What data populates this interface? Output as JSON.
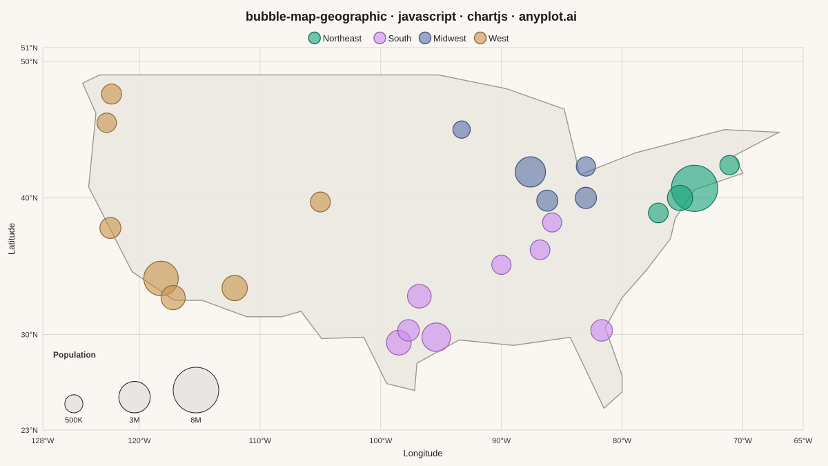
{
  "chart_data": {
    "type": "scatter",
    "subtype": "bubble-map",
    "title": "bubble-map-geographic · javascript · chartjs · anyplot.ai",
    "xlabel": "Longitude",
    "ylabel": "Latitude",
    "xlim": [
      -128,
      -65
    ],
    "ylim": [
      23,
      51
    ],
    "x_ticks": [
      {
        "value": -128,
        "label": "128°W"
      },
      {
        "value": -120,
        "label": "120°W"
      },
      {
        "value": -110,
        "label": "110°W"
      },
      {
        "value": -100,
        "label": "100°W"
      },
      {
        "value": -90,
        "label": "90°W"
      },
      {
        "value": -80,
        "label": "80°W"
      },
      {
        "value": -70,
        "label": "70°W"
      },
      {
        "value": -65,
        "label": "65°W"
      }
    ],
    "y_ticks": [
      {
        "value": 23,
        "label": "23°N"
      },
      {
        "value": 30,
        "label": "30°N"
      },
      {
        "value": 40,
        "label": "40°N"
      },
      {
        "value": 50,
        "label": "50°N"
      },
      {
        "value": 51,
        "label": "51°N"
      }
    ],
    "grid": true,
    "legend_position": "top",
    "series": [
      {
        "name": "Northeast",
        "color": "#16a37d",
        "points": [
          {
            "lon": -74.0,
            "lat": 40.7,
            "pop": 8300000
          },
          {
            "lon": -75.2,
            "lat": 40.0,
            "pop": 1600000
          },
          {
            "lon": -77.0,
            "lat": 38.9,
            "pop": 700000
          },
          {
            "lon": -71.1,
            "lat": 42.4,
            "pop": 650000
          }
        ]
      },
      {
        "name": "South",
        "color": "#cc88f0",
        "points": [
          {
            "lon": -95.4,
            "lat": 29.8,
            "pop": 2300000
          },
          {
            "lon": -98.5,
            "lat": 29.4,
            "pop": 1500000
          },
          {
            "lon": -96.8,
            "lat": 32.8,
            "pop": 1300000
          },
          {
            "lon": -97.7,
            "lat": 30.3,
            "pop": 950000
          },
          {
            "lon": -81.7,
            "lat": 30.3,
            "pop": 950000
          },
          {
            "lon": -86.8,
            "lat": 36.2,
            "pop": 700000
          },
          {
            "lon": -90.0,
            "lat": 35.1,
            "pop": 630000
          },
          {
            "lon": -85.8,
            "lat": 38.2,
            "pop": 620000
          }
        ]
      },
      {
        "name": "Midwest",
        "color": "#5a73a8",
        "points": [
          {
            "lon": -87.6,
            "lat": 41.9,
            "pop": 2700000
          },
          {
            "lon": -86.2,
            "lat": 39.8,
            "pop": 880000
          },
          {
            "lon": -83.0,
            "lat": 40.0,
            "pop": 900000
          },
          {
            "lon": -83.0,
            "lat": 42.3,
            "pop": 640000
          },
          {
            "lon": -93.3,
            "lat": 45.0,
            "pop": 420000
          }
        ]
      },
      {
        "name": "West",
        "color": "#c8924a",
        "points": [
          {
            "lon": -118.2,
            "lat": 34.1,
            "pop": 3900000
          },
          {
            "lon": -112.1,
            "lat": 33.4,
            "pop": 1600000
          },
          {
            "lon": -117.2,
            "lat": 32.7,
            "pop": 1400000
          },
          {
            "lon": -122.4,
            "lat": 37.8,
            "pop": 870000
          },
          {
            "lon": -105.0,
            "lat": 39.7,
            "pop": 720000
          },
          {
            "lon": -122.3,
            "lat": 47.6,
            "pop": 740000
          },
          {
            "lon": -122.7,
            "lat": 45.5,
            "pop": 650000
          }
        ]
      }
    ],
    "size_legend": {
      "title": "Population",
      "entries": [
        {
          "label": "500K",
          "pop": 500000
        },
        {
          "label": "3M",
          "pop": 3000000
        },
        {
          "label": "8M",
          "pop": 8000000
        }
      ]
    },
    "map_outline": [
      [
        -124.7,
        48.4
      ],
      [
        -123.3,
        49.0
      ],
      [
        -95.2,
        49.0
      ],
      [
        -89.6,
        48.0
      ],
      [
        -84.8,
        46.5
      ],
      [
        -83.5,
        41.7
      ],
      [
        -78.9,
        43.3
      ],
      [
        -71.5,
        45.0
      ],
      [
        -67.0,
        44.8
      ],
      [
        -70.7,
        43.1
      ],
      [
        -70.0,
        41.8
      ],
      [
        -74.0,
        40.6
      ],
      [
        -75.6,
        38.5
      ],
      [
        -76.0,
        37.0
      ],
      [
        -78.0,
        34.7
      ],
      [
        -80.0,
        32.7
      ],
      [
        -81.4,
        30.5
      ],
      [
        -80.0,
        27.0
      ],
      [
        -80.0,
        25.8
      ],
      [
        -81.5,
        24.6
      ],
      [
        -84.3,
        29.8
      ],
      [
        -89.0,
        29.2
      ],
      [
        -93.5,
        29.6
      ],
      [
        -97.0,
        27.9
      ],
      [
        -97.2,
        25.9
      ],
      [
        -99.5,
        26.4
      ],
      [
        -101.4,
        29.8
      ],
      [
        -104.9,
        29.7
      ],
      [
        -106.6,
        31.7
      ],
      [
        -108.2,
        31.3
      ],
      [
        -111.1,
        31.3
      ],
      [
        -114.8,
        32.5
      ],
      [
        -117.1,
        32.5
      ],
      [
        -120.6,
        34.6
      ],
      [
        -124.2,
        40.8
      ],
      [
        -123.6,
        46.2
      ],
      [
        -124.7,
        48.4
      ]
    ]
  }
}
